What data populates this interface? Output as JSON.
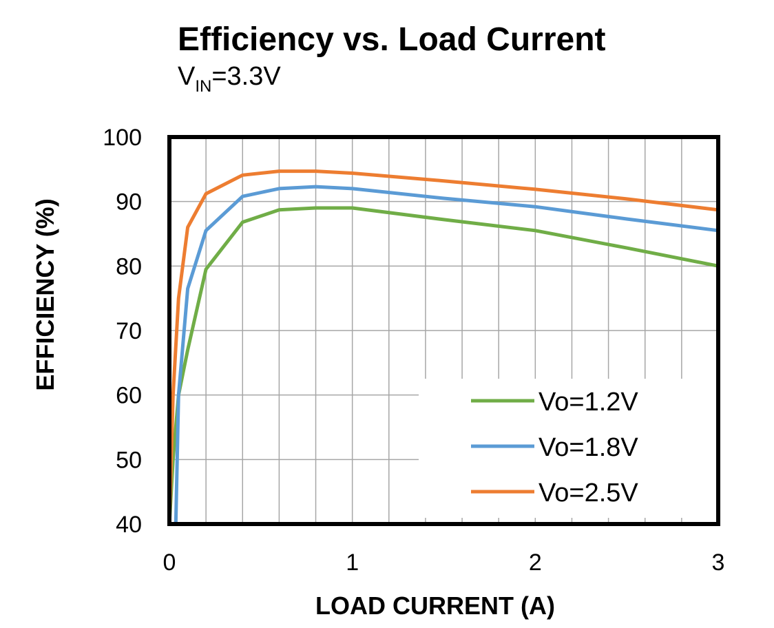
{
  "chart_data": {
    "type": "line",
    "title": "Efficiency vs. Load Current",
    "subtitle": {
      "prefix": "V",
      "subscript": "IN",
      "suffix": "=3.3V"
    },
    "xlabel": "LOAD CURRENT (A)",
    "ylabel": "EFFICIENCY (%)",
    "xlim": [
      0,
      3
    ],
    "ylim": [
      40,
      100
    ],
    "xticks": [
      "0",
      "1",
      "2",
      "3"
    ],
    "yticks": [
      "40",
      "50",
      "60",
      "70",
      "80",
      "90",
      "100"
    ],
    "grid": true,
    "legend_position": "bottom-right",
    "series": [
      {
        "name": "Vo=1.2V",
        "color": "#70AD47",
        "points": [
          [
            0.0,
            40
          ],
          [
            0.02,
            50
          ],
          [
            0.05,
            60
          ],
          [
            0.1,
            67
          ],
          [
            0.2,
            79.5
          ],
          [
            0.4,
            86.8
          ],
          [
            0.6,
            88.7
          ],
          [
            0.8,
            89
          ],
          [
            1.0,
            89
          ],
          [
            1.5,
            87.2
          ],
          [
            2.0,
            85.5
          ],
          [
            2.5,
            82.8
          ],
          [
            3.0,
            80
          ]
        ]
      },
      {
        "name": "Vo=1.8V",
        "color": "#5B9BD5",
        "points": [
          [
            0.035,
            40
          ],
          [
            0.05,
            60
          ],
          [
            0.1,
            76.5
          ],
          [
            0.2,
            85.5
          ],
          [
            0.4,
            90.8
          ],
          [
            0.6,
            92
          ],
          [
            0.8,
            92.3
          ],
          [
            1.0,
            92
          ],
          [
            1.5,
            90.5
          ],
          [
            2.0,
            89.2
          ],
          [
            2.5,
            87.3
          ],
          [
            3.0,
            85.5
          ]
        ]
      },
      {
        "name": "Vo=2.5V",
        "color": "#ED7D31",
        "points": [
          [
            0.0,
            40
          ],
          [
            0.02,
            60
          ],
          [
            0.05,
            75
          ],
          [
            0.1,
            86
          ],
          [
            0.2,
            91.2
          ],
          [
            0.4,
            94.1
          ],
          [
            0.6,
            94.7
          ],
          [
            0.8,
            94.7
          ],
          [
            1.0,
            94.4
          ],
          [
            1.5,
            93.2
          ],
          [
            2.0,
            91.9
          ],
          [
            2.5,
            90.4
          ],
          [
            3.0,
            88.7
          ]
        ]
      }
    ]
  }
}
